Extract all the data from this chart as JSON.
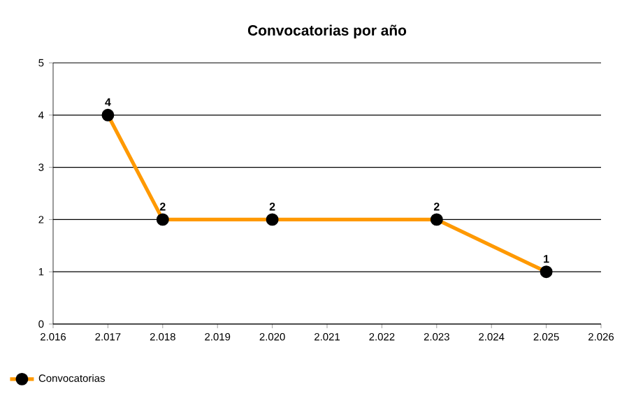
{
  "chart_data": {
    "type": "line",
    "title": "Convocatorias por año",
    "x": [
      2017,
      2018,
      2020,
      2023,
      2025
    ],
    "series": [
      {
        "name": "Convocatorias",
        "color": "#ff9900",
        "values": [
          4,
          2,
          2,
          2,
          1
        ]
      }
    ],
    "xlim": [
      2016,
      2026
    ],
    "xticks": [
      {
        "value": 2016,
        "label": "2.016"
      },
      {
        "value": 2017,
        "label": "2.017"
      },
      {
        "value": 2018,
        "label": "2.018"
      },
      {
        "value": 2019,
        "label": "2.019"
      },
      {
        "value": 2020,
        "label": "2.020"
      },
      {
        "value": 2021,
        "label": "2.021"
      },
      {
        "value": 2022,
        "label": "2.022"
      },
      {
        "value": 2023,
        "label": "2.023"
      },
      {
        "value": 2024,
        "label": "2.024"
      },
      {
        "value": 2025,
        "label": "2.025"
      },
      {
        "value": 2026,
        "label": "2.026"
      }
    ],
    "ylim": [
      0,
      5
    ],
    "yticks": [
      0,
      1,
      2,
      3,
      4,
      5
    ],
    "grid": "y",
    "legend": "bottom left",
    "marker": "circle",
    "line_style": "solid",
    "data_labels": true
  }
}
